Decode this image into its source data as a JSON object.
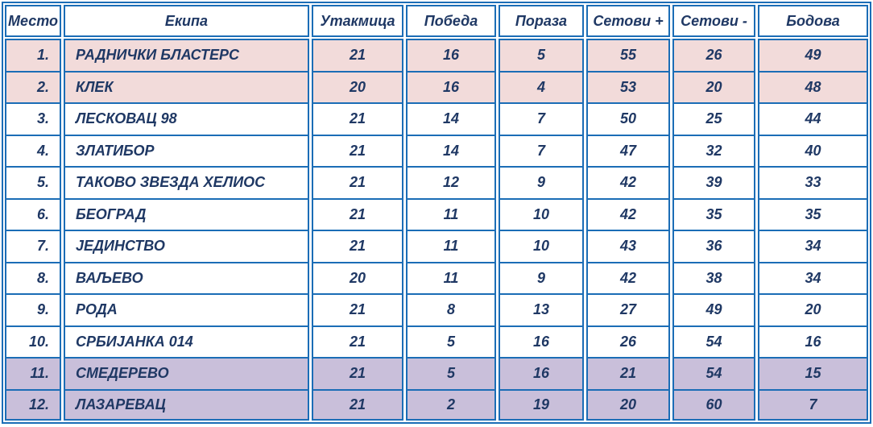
{
  "colors": {
    "border_blue": "#1b6db6",
    "text_navy": "#1f3864",
    "top_highlight_pink": "#f2dbda",
    "bottom_highlight_purple": "#c9bfda",
    "row_white": "#ffffff"
  },
  "table": {
    "headers": [
      "Место",
      "Екипа",
      "Утакмица",
      "Победа",
      "Пораза",
      "Сетови +",
      "Сетови -",
      "Бодова"
    ],
    "field_order": [
      "place",
      "team",
      "played",
      "wins",
      "losses",
      "sets_plus",
      "sets_minus",
      "points"
    ],
    "rows": [
      {
        "place": "1.",
        "team": "РАДНИЧКИ БЛАСТЕРС",
        "played": "21",
        "wins": "16",
        "losses": "5",
        "sets_plus": "55",
        "sets_minus": "26",
        "points": "49",
        "highlight": "pink"
      },
      {
        "place": "2.",
        "team": "КЛЕК",
        "played": "20",
        "wins": "16",
        "losses": "4",
        "sets_plus": "53",
        "sets_minus": "20",
        "points": "48",
        "highlight": "pink"
      },
      {
        "place": "3.",
        "team": "ЛЕСКОВАЦ 98",
        "played": "21",
        "wins": "14",
        "losses": "7",
        "sets_plus": "50",
        "sets_minus": "25",
        "points": "44",
        "highlight": "white"
      },
      {
        "place": "4.",
        "team": "ЗЛАТИБОР",
        "played": "21",
        "wins": "14",
        "losses": "7",
        "sets_plus": "47",
        "sets_minus": "32",
        "points": "40",
        "highlight": "white"
      },
      {
        "place": "5.",
        "team": "ТАКОВО ЗВЕЗДА ХЕЛИОС",
        "played": "21",
        "wins": "12",
        "losses": "9",
        "sets_plus": "42",
        "sets_minus": "39",
        "points": "33",
        "highlight": "white"
      },
      {
        "place": "6.",
        "team": "БЕОГРАД",
        "played": "21",
        "wins": "11",
        "losses": "10",
        "sets_plus": "42",
        "sets_minus": "35",
        "points": "35",
        "highlight": "white"
      },
      {
        "place": "7.",
        "team": "ЈЕДИНСТВО",
        "played": "21",
        "wins": "11",
        "losses": "10",
        "sets_plus": "43",
        "sets_minus": "36",
        "points": "34",
        "highlight": "white"
      },
      {
        "place": "8.",
        "team": "ВАЉЕВО",
        "played": "20",
        "wins": "11",
        "losses": "9",
        "sets_plus": "42",
        "sets_minus": "38",
        "points": "34",
        "highlight": "white"
      },
      {
        "place": "9.",
        "team": "РОДА",
        "played": "21",
        "wins": "8",
        "losses": "13",
        "sets_plus": "27",
        "sets_minus": "49",
        "points": "20",
        "highlight": "white"
      },
      {
        "place": "10.",
        "team": "СРБИЈАНКА 014",
        "played": "21",
        "wins": "5",
        "losses": "16",
        "sets_plus": "26",
        "sets_minus": "54",
        "points": "16",
        "highlight": "white"
      },
      {
        "place": "11.",
        "team": "СМЕДЕРЕВО",
        "played": "21",
        "wins": "5",
        "losses": "16",
        "sets_plus": "21",
        "sets_minus": "54",
        "points": "15",
        "highlight": "purple"
      },
      {
        "place": "12.",
        "team": "ЛАЗАРЕВАЦ",
        "played": "21",
        "wins": "2",
        "losses": "19",
        "sets_plus": "20",
        "sets_minus": "60",
        "points": "7",
        "highlight": "purple"
      }
    ]
  },
  "chart_data": {
    "type": "table",
    "title": "",
    "columns": [
      "Место",
      "Екипа",
      "Утакмица",
      "Победа",
      "Пораза",
      "Сетови +",
      "Сетови -",
      "Бодова"
    ],
    "rows": [
      [
        "1.",
        "РАДНИЧКИ БЛАСТЕРС",
        21,
        16,
        5,
        55,
        26,
        49
      ],
      [
        "2.",
        "КЛЕК",
        20,
        16,
        4,
        53,
        20,
        48
      ],
      [
        "3.",
        "ЛЕСКОВАЦ 98",
        21,
        14,
        7,
        50,
        25,
        44
      ],
      [
        "4.",
        "ЗЛАТИБОР",
        21,
        14,
        7,
        47,
        32,
        40
      ],
      [
        "5.",
        "ТАКОВО ЗВЕЗДА ХЕЛИОС",
        21,
        12,
        9,
        42,
        39,
        33
      ],
      [
        "6.",
        "БЕОГРАД",
        21,
        11,
        10,
        42,
        35,
        35
      ],
      [
        "7.",
        "ЈЕДИНСТВО",
        21,
        11,
        10,
        43,
        36,
        34
      ],
      [
        "8.",
        "ВАЉЕВО",
        20,
        11,
        9,
        42,
        38,
        34
      ],
      [
        "9.",
        "РОДА",
        21,
        8,
        13,
        27,
        49,
        20
      ],
      [
        "10.",
        "СРБИЈАНКА 014",
        21,
        5,
        16,
        26,
        54,
        16
      ],
      [
        "11.",
        "СМЕДЕРЕВО",
        21,
        5,
        16,
        21,
        54,
        15
      ],
      [
        "12.",
        "ЛАЗАРЕВАЦ",
        21,
        2,
        19,
        20,
        60,
        7
      ]
    ],
    "row_highlights": {
      "pink_rows": [
        1,
        2
      ],
      "purple_rows": [
        11,
        12
      ],
      "white_rows": [
        3,
        4,
        5,
        6,
        7,
        8,
        9,
        10
      ]
    },
    "layout": {
      "grid": "on",
      "header_background": "#ffffff"
    }
  }
}
